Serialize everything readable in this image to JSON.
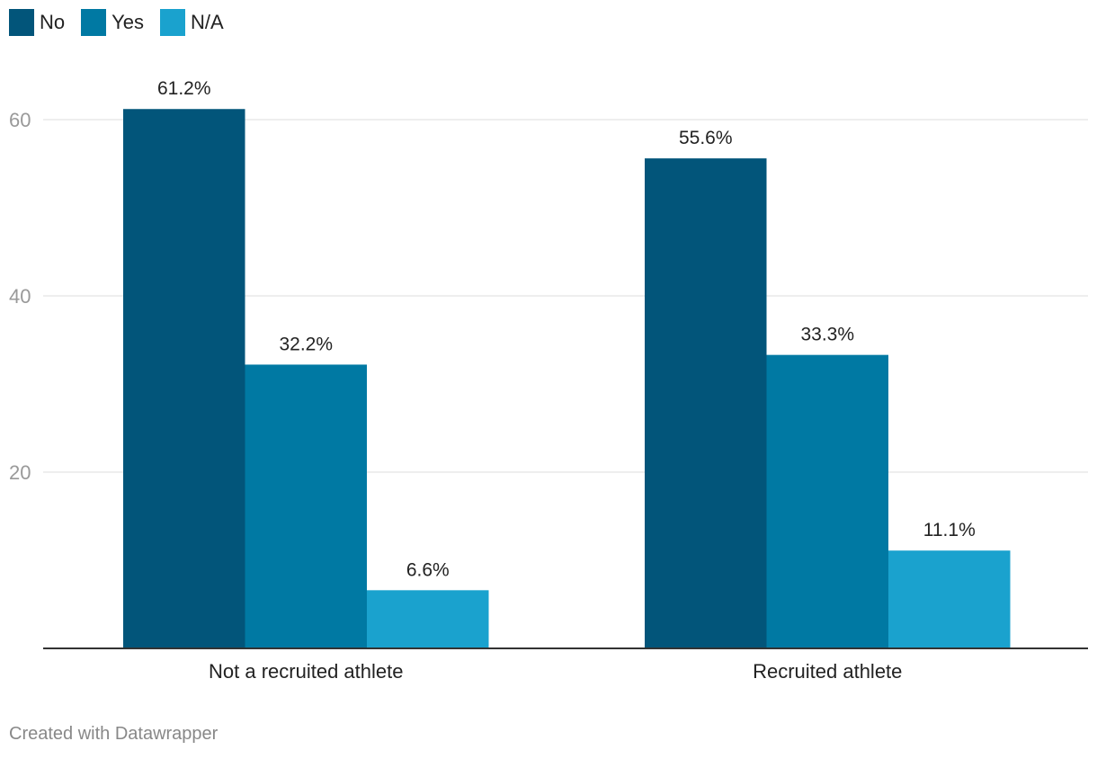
{
  "legend": [
    {
      "name": "No",
      "color": "#02557a"
    },
    {
      "name": "Yes",
      "color": "#0079a3"
    },
    {
      "name": "N/A",
      "color": "#1aa2ce"
    }
  ],
  "chart_data": {
    "type": "bar",
    "categories": [
      "Not a recruited athlete",
      "Recruited athlete"
    ],
    "series": [
      {
        "name": "No",
        "values": [
          61.2,
          55.6
        ],
        "labels": [
          "61.2%",
          "55.6%"
        ]
      },
      {
        "name": "Yes",
        "values": [
          32.2,
          33.3
        ],
        "labels": [
          "32.2%",
          "33.3%"
        ]
      },
      {
        "name": "N/A",
        "values": [
          6.6,
          11.1
        ],
        "labels": [
          "6.6%",
          "11.1%"
        ]
      }
    ],
    "yticks": [
      20,
      40,
      60
    ],
    "ylim": [
      0,
      60
    ],
    "grid": true,
    "legend_position": "top-left",
    "title": "",
    "xlabel": "",
    "ylabel": ""
  },
  "footer": "Created with Datawrapper"
}
